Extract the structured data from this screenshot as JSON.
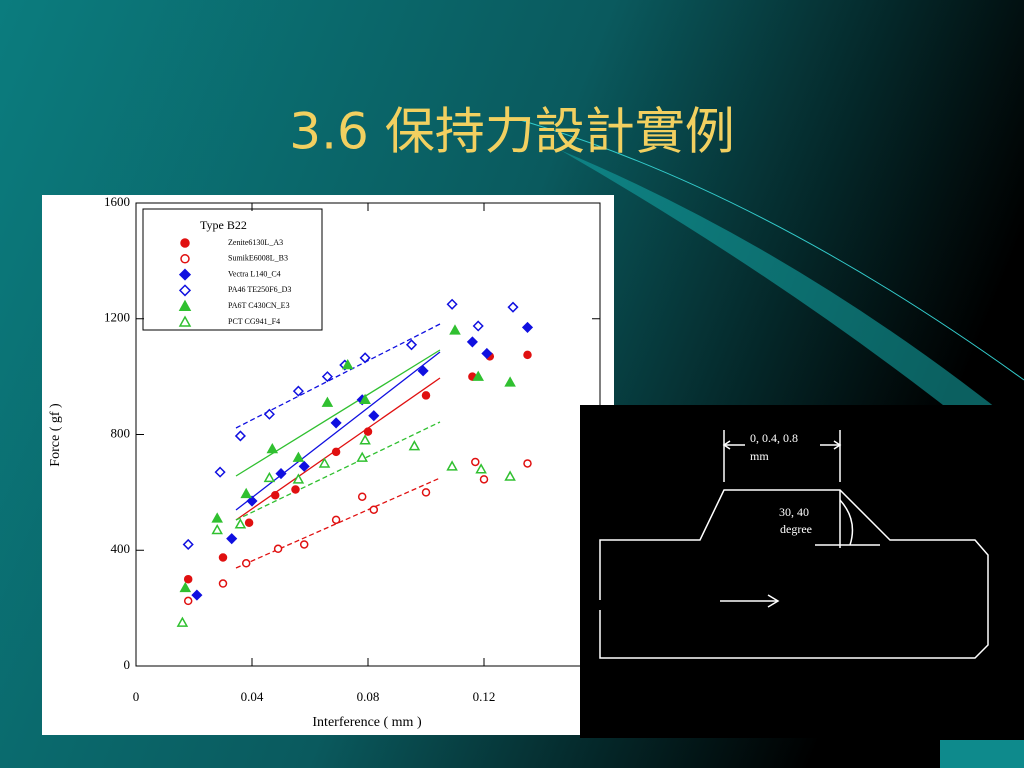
{
  "slide_title": "3.6  保持力設計實例",
  "chart_data": {
    "type": "scatter",
    "xlabel": "Interference ( mm )",
    "ylabel": "Force ( gf )",
    "legend_title": "Type B22",
    "xlim": [
      0,
      0.16
    ],
    "xticks": [
      0,
      0.04,
      0.08,
      0.12
    ],
    "ylim": [
      0,
      1600
    ],
    "yticks": [
      0,
      400,
      800,
      1200,
      1600
    ],
    "series": [
      {
        "name": "Zenite6130L_A3",
        "color": "#e01010",
        "marker": "circle",
        "filled": true,
        "x": [
          0.018,
          0.03,
          0.039,
          0.048,
          0.055,
          0.069,
          0.08,
          0.1,
          0.116,
          0.122,
          0.135
        ],
        "values": [
          300,
          375,
          495,
          590,
          610,
          740,
          810,
          935,
          1000,
          1070,
          1075
        ]
      },
      {
        "name": "SumikE6008L_B3",
        "color": "#e01010",
        "marker": "circle",
        "filled": false,
        "x": [
          0.018,
          0.03,
          0.038,
          0.049,
          0.058,
          0.069,
          0.078,
          0.082,
          0.1,
          0.117,
          0.12,
          0.135
        ],
        "values": [
          225,
          285,
          355,
          405,
          420,
          505,
          585,
          540,
          600,
          705,
          645,
          700
        ]
      },
      {
        "name": "Vectra L140_C4",
        "color": "#1010e0",
        "marker": "diamond",
        "filled": true,
        "x": [
          0.021,
          0.033,
          0.04,
          0.05,
          0.058,
          0.069,
          0.078,
          0.082,
          0.099,
          0.116,
          0.121,
          0.135
        ],
        "values": [
          245,
          440,
          570,
          665,
          690,
          840,
          920,
          865,
          1020,
          1120,
          1080,
          1170
        ]
      },
      {
        "name": "PA46 TE250F6_D3",
        "color": "#1010e0",
        "marker": "diamond",
        "filled": false,
        "x": [
          0.018,
          0.029,
          0.036,
          0.046,
          0.056,
          0.066,
          0.072,
          0.079,
          0.095,
          0.109,
          0.118,
          0.13
        ],
        "values": [
          420,
          670,
          795,
          870,
          950,
          1000,
          1040,
          1065,
          1110,
          1250,
          1175,
          1240
        ]
      },
      {
        "name": "PA6T C430CN_E3",
        "color": "#30c030",
        "marker": "triangle",
        "filled": true,
        "x": [
          0.017,
          0.028,
          0.038,
          0.047,
          0.056,
          0.066,
          0.073,
          0.079,
          0.11,
          0.118,
          0.129
        ],
        "values": [
          270,
          510,
          595,
          750,
          720,
          910,
          1040,
          920,
          1160,
          1000,
          980
        ]
      },
      {
        "name": "PCT CG941_F4",
        "color": "#30c030",
        "marker": "triangle",
        "filled": false,
        "x": [
          0.016,
          0.028,
          0.036,
          0.046,
          0.056,
          0.065,
          0.078,
          0.079,
          0.096,
          0.109,
          0.119,
          0.129
        ],
        "values": [
          150,
          470,
          490,
          650,
          645,
          700,
          720,
          780,
          760,
          690,
          680,
          655
        ]
      }
    ]
  },
  "diagram": {
    "width_label": "0, 0.4, 0.8",
    "width_unit": "mm",
    "angle_label": "30, 40",
    "angle_unit": "degree"
  }
}
